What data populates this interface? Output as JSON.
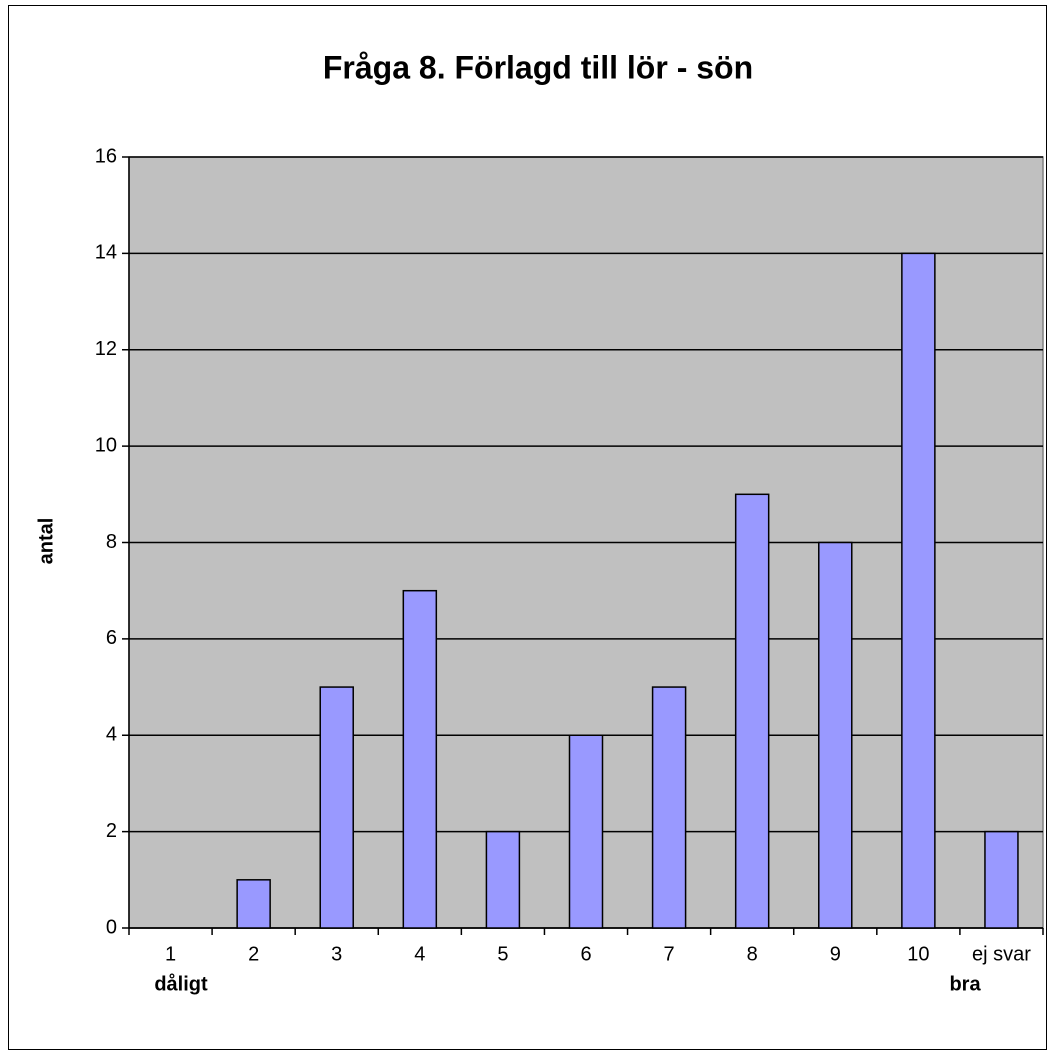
{
  "chart_data": {
    "type": "bar",
    "title": "Fråga 8. Förlagd till lör - sön",
    "y_label": "antal",
    "categories": [
      "1",
      "2",
      "3",
      "4",
      "5",
      "6",
      "7",
      "8",
      "9",
      "10",
      "ej svar"
    ],
    "values": [
      0,
      1,
      5,
      7,
      2,
      4,
      5,
      9,
      8,
      14,
      2
    ],
    "color": "#9999ff",
    "ylim": [
      0,
      16
    ],
    "yticks": [
      0,
      2,
      4,
      6,
      8,
      10,
      12,
      14,
      16
    ],
    "grid": true,
    "annotations": [
      "dåligt",
      "bra"
    ]
  }
}
